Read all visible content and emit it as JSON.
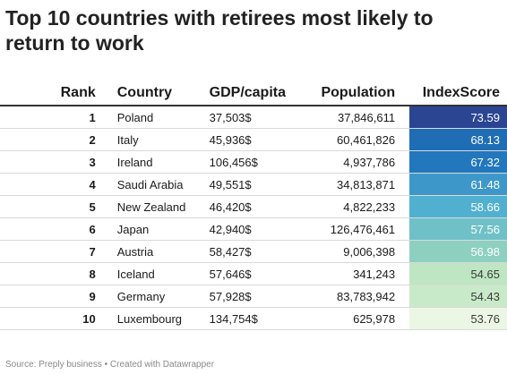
{
  "title": "Top 10 countries with retirees most likely to return to work",
  "source": "Source: Preply business • Created with Datawrapper",
  "chart_data": {
    "type": "table",
    "columns": [
      "Rank",
      "Country",
      "GDP/capita",
      "Population",
      "IndexScore"
    ],
    "rows": [
      {
        "rank": "1",
        "country": "Poland",
        "gdp": "37,503$",
        "population": "37,846,611",
        "score": "73.59",
        "color": "#2b4592"
      },
      {
        "rank": "2",
        "country": "Italy",
        "gdp": "45,936$",
        "population": "60,461,826",
        "score": "68.13",
        "color": "#1f6db5"
      },
      {
        "rank": "3",
        "country": "Ireland",
        "gdp": "106,456$",
        "population": "4,937,786",
        "score": "67.32",
        "color": "#2277bd"
      },
      {
        "rank": "4",
        "country": "Saudi Arabia",
        "gdp": "49,551$",
        "population": "34,813,871",
        "score": "61.48",
        "color": "#3d98c9"
      },
      {
        "rank": "5",
        "country": "New Zealand",
        "gdp": "46,420$",
        "population": "4,822,233",
        "score": "58.66",
        "color": "#51b0cf"
      },
      {
        "rank": "6",
        "country": "Japan",
        "gdp": "42,940$",
        "population": "126,476,461",
        "score": "57.56",
        "color": "#6fc1c7"
      },
      {
        "rank": "7",
        "country": "Austria",
        "gdp": "58,427$",
        "population": "9,006,398",
        "score": "56.98",
        "color": "#8ed0c0"
      },
      {
        "rank": "8",
        "country": "Iceland",
        "gdp": "57,646$",
        "population": "341,243",
        "score": "54.65",
        "color": "#bfe6c2"
      },
      {
        "rank": "9",
        "country": "Germany",
        "gdp": "57,928$",
        "population": "83,783,942",
        "score": "54.43",
        "color": "#c9eac8"
      },
      {
        "rank": "10",
        "country": "Luxembourg",
        "gdp": "134,754$",
        "population": "625,978",
        "score": "53.76",
        "color": "#ebf6e4"
      }
    ]
  }
}
